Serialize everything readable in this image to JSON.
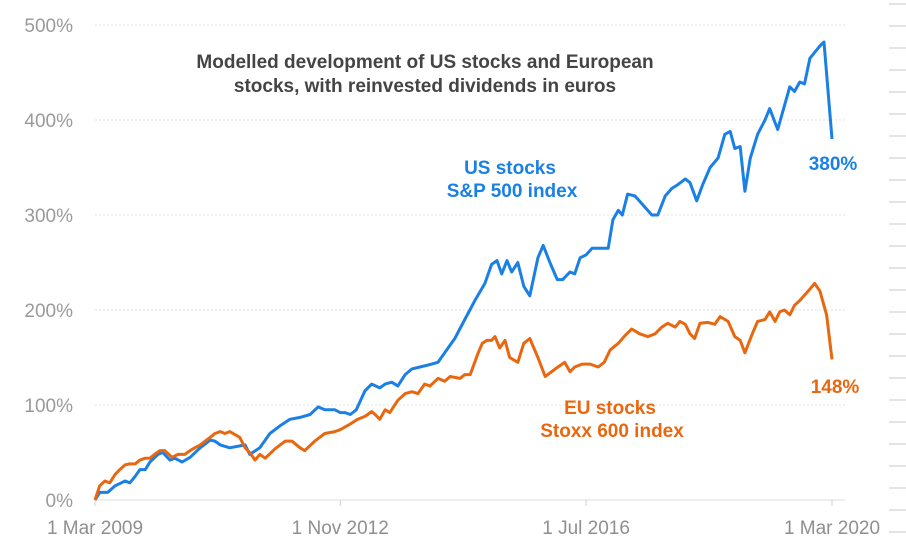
{
  "chart_data": {
    "type": "line",
    "title": "Modelled development of US stocks and European stocks, with reinvested dividends in euros",
    "title_lines": [
      "Modelled development of US stocks and European",
      "stocks, with reinvested dividends in euros"
    ],
    "xlabel": "",
    "ylabel": "",
    "x_unit": "decimal year",
    "xlim": [
      2009.17,
      2020.17
    ],
    "ylim": [
      0,
      500
    ],
    "y_ticks": [
      0,
      100,
      200,
      300,
      400,
      500
    ],
    "y_tick_labels": [
      "0%",
      "100%",
      "200%",
      "300%",
      "400%",
      "500%"
    ],
    "x_ticks": [
      2009.17,
      2012.83,
      2016.5,
      2020.17
    ],
    "x_tick_labels": [
      "1 Mar 2009",
      "1 Nov 2012",
      "1 Jul 2016",
      "1 Mar 2020"
    ],
    "grid": "horizontal dotted",
    "legend": "none (inline labels)",
    "series": [
      {
        "name": "US stocks S&P 500 index",
        "label_lines": [
          "US stocks",
          "S&P 500 index"
        ],
        "end_label": "380%",
        "color": "#1a80e5",
        "points": [
          [
            2009.17,
            0
          ],
          [
            2009.24,
            8
          ],
          [
            2009.36,
            8
          ],
          [
            2009.47,
            15
          ],
          [
            2009.62,
            20
          ],
          [
            2009.69,
            18
          ],
          [
            2009.77,
            25
          ],
          [
            2009.84,
            32
          ],
          [
            2009.92,
            32
          ],
          [
            2009.99,
            40
          ],
          [
            2010.11,
            48
          ],
          [
            2010.18,
            50
          ],
          [
            2010.29,
            42
          ],
          [
            2010.36,
            44
          ],
          [
            2010.47,
            40
          ],
          [
            2010.59,
            45
          ],
          [
            2010.74,
            55
          ],
          [
            2010.89,
            63
          ],
          [
            2010.96,
            62
          ],
          [
            2011.04,
            58
          ],
          [
            2011.18,
            55
          ],
          [
            2011.41,
            58
          ],
          [
            2011.48,
            48
          ],
          [
            2011.63,
            55
          ],
          [
            2011.78,
            70
          ],
          [
            2011.93,
            78
          ],
          [
            2012.08,
            85
          ],
          [
            2012.23,
            87
          ],
          [
            2012.38,
            90
          ],
          [
            2012.5,
            98
          ],
          [
            2012.6,
            95
          ],
          [
            2012.75,
            95
          ],
          [
            2012.83,
            92
          ],
          [
            2012.9,
            92
          ],
          [
            2012.98,
            90
          ],
          [
            2013.07,
            95
          ],
          [
            2013.2,
            115
          ],
          [
            2013.3,
            122
          ],
          [
            2013.42,
            118
          ],
          [
            2013.5,
            122
          ],
          [
            2013.6,
            124
          ],
          [
            2013.69,
            120
          ],
          [
            2013.8,
            132
          ],
          [
            2013.9,
            138
          ],
          [
            2014.02,
            140
          ],
          [
            2014.14,
            142
          ],
          [
            2014.29,
            145
          ],
          [
            2014.39,
            155
          ],
          [
            2014.54,
            170
          ],
          [
            2014.69,
            190
          ],
          [
            2014.84,
            210
          ],
          [
            2014.99,
            228
          ],
          [
            2015.09,
            248
          ],
          [
            2015.17,
            252
          ],
          [
            2015.24,
            238
          ],
          [
            2015.32,
            252
          ],
          [
            2015.39,
            240
          ],
          [
            2015.48,
            250
          ],
          [
            2015.57,
            225
          ],
          [
            2015.66,
            215
          ],
          [
            2015.78,
            255
          ],
          [
            2015.86,
            268
          ],
          [
            2015.96,
            250
          ],
          [
            2016.07,
            232
          ],
          [
            2016.15,
            232
          ],
          [
            2016.26,
            240
          ],
          [
            2016.33,
            238
          ],
          [
            2016.41,
            255
          ],
          [
            2016.5,
            258
          ],
          [
            2016.59,
            265
          ],
          [
            2016.71,
            265
          ],
          [
            2016.83,
            265
          ],
          [
            2016.9,
            295
          ],
          [
            2016.98,
            305
          ],
          [
            2017.04,
            300
          ],
          [
            2017.12,
            322
          ],
          [
            2017.23,
            320
          ],
          [
            2017.38,
            308
          ],
          [
            2017.48,
            300
          ],
          [
            2017.57,
            300
          ],
          [
            2017.68,
            320
          ],
          [
            2017.78,
            328
          ],
          [
            2017.87,
            332
          ],
          [
            2017.98,
            338
          ],
          [
            2018.05,
            334
          ],
          [
            2018.15,
            315
          ],
          [
            2018.24,
            332
          ],
          [
            2018.35,
            350
          ],
          [
            2018.47,
            360
          ],
          [
            2018.57,
            385
          ],
          [
            2018.65,
            388
          ],
          [
            2018.72,
            370
          ],
          [
            2018.8,
            372
          ],
          [
            2018.87,
            325
          ],
          [
            2018.95,
            360
          ],
          [
            2019.06,
            385
          ],
          [
            2019.17,
            400
          ],
          [
            2019.24,
            412
          ],
          [
            2019.36,
            390
          ],
          [
            2019.46,
            415
          ],
          [
            2019.54,
            435
          ],
          [
            2019.61,
            430
          ],
          [
            2019.69,
            440
          ],
          [
            2019.76,
            438
          ],
          [
            2019.84,
            465
          ],
          [
            2019.99,
            478
          ],
          [
            2020.05,
            482
          ],
          [
            2020.17,
            380
          ]
        ]
      },
      {
        "name": "EU stocks Stoxx 600 index",
        "label_lines": [
          "EU stocks",
          "Stoxx 600 index"
        ],
        "end_label": "148%",
        "color": "#e8670f",
        "points": [
          [
            2009.17,
            0
          ],
          [
            2009.24,
            15
          ],
          [
            2009.32,
            20
          ],
          [
            2009.39,
            18
          ],
          [
            2009.47,
            27
          ],
          [
            2009.54,
            32
          ],
          [
            2009.62,
            37
          ],
          [
            2009.69,
            38
          ],
          [
            2009.77,
            38
          ],
          [
            2009.84,
            42
          ],
          [
            2009.92,
            44
          ],
          [
            2009.99,
            44
          ],
          [
            2010.06,
            48
          ],
          [
            2010.14,
            52
          ],
          [
            2010.21,
            52
          ],
          [
            2010.32,
            45
          ],
          [
            2010.41,
            48
          ],
          [
            2010.51,
            48
          ],
          [
            2010.59,
            52
          ],
          [
            2010.66,
            55
          ],
          [
            2010.74,
            58
          ],
          [
            2010.89,
            66
          ],
          [
            2010.96,
            70
          ],
          [
            2011.04,
            72
          ],
          [
            2011.11,
            70
          ],
          [
            2011.18,
            72
          ],
          [
            2011.33,
            66
          ],
          [
            2011.41,
            55
          ],
          [
            2011.48,
            50
          ],
          [
            2011.56,
            42
          ],
          [
            2011.63,
            48
          ],
          [
            2011.71,
            44
          ],
          [
            2011.86,
            54
          ],
          [
            2012.01,
            62
          ],
          [
            2012.11,
            62
          ],
          [
            2012.23,
            55
          ],
          [
            2012.3,
            52
          ],
          [
            2012.45,
            62
          ],
          [
            2012.6,
            70
          ],
          [
            2012.75,
            72
          ],
          [
            2012.83,
            74
          ],
          [
            2012.98,
            80
          ],
          [
            2013.09,
            85
          ],
          [
            2013.2,
            88
          ],
          [
            2013.3,
            93
          ],
          [
            2013.35,
            90
          ],
          [
            2013.42,
            85
          ],
          [
            2013.5,
            95
          ],
          [
            2013.57,
            92
          ],
          [
            2013.69,
            105
          ],
          [
            2013.8,
            112
          ],
          [
            2013.9,
            114
          ],
          [
            2013.99,
            112
          ],
          [
            2014.09,
            122
          ],
          [
            2014.17,
            120
          ],
          [
            2014.29,
            128
          ],
          [
            2014.39,
            125
          ],
          [
            2014.47,
            130
          ],
          [
            2014.62,
            128
          ],
          [
            2014.69,
            132
          ],
          [
            2014.77,
            132
          ],
          [
            2014.89,
            155
          ],
          [
            2014.95,
            165
          ],
          [
            2015.02,
            168
          ],
          [
            2015.09,
            168
          ],
          [
            2015.14,
            172
          ],
          [
            2015.21,
            160
          ],
          [
            2015.29,
            168
          ],
          [
            2015.36,
            150
          ],
          [
            2015.48,
            145
          ],
          [
            2015.57,
            165
          ],
          [
            2015.66,
            170
          ],
          [
            2015.78,
            150
          ],
          [
            2015.89,
            130
          ],
          [
            2016.04,
            138
          ],
          [
            2016.18,
            145
          ],
          [
            2016.26,
            135
          ],
          [
            2016.33,
            140
          ],
          [
            2016.44,
            143
          ],
          [
            2016.56,
            143
          ],
          [
            2016.68,
            140
          ],
          [
            2016.77,
            145
          ],
          [
            2016.86,
            158
          ],
          [
            2016.98,
            165
          ],
          [
            2017.08,
            173
          ],
          [
            2017.18,
            180
          ],
          [
            2017.3,
            175
          ],
          [
            2017.42,
            172
          ],
          [
            2017.53,
            175
          ],
          [
            2017.63,
            182
          ],
          [
            2017.72,
            186
          ],
          [
            2017.83,
            182
          ],
          [
            2017.9,
            188
          ],
          [
            2017.98,
            185
          ],
          [
            2018.05,
            175
          ],
          [
            2018.12,
            170
          ],
          [
            2018.2,
            186
          ],
          [
            2018.32,
            187
          ],
          [
            2018.42,
            185
          ],
          [
            2018.5,
            193
          ],
          [
            2018.62,
            188
          ],
          [
            2018.72,
            172
          ],
          [
            2018.8,
            168
          ],
          [
            2018.87,
            155
          ],
          [
            2018.98,
            175
          ],
          [
            2019.06,
            188
          ],
          [
            2019.17,
            190
          ],
          [
            2019.24,
            198
          ],
          [
            2019.32,
            188
          ],
          [
            2019.39,
            198
          ],
          [
            2019.46,
            200
          ],
          [
            2019.54,
            195
          ],
          [
            2019.61,
            205
          ],
          [
            2019.69,
            210
          ],
          [
            2019.84,
            222
          ],
          [
            2019.91,
            228
          ],
          [
            2019.99,
            220
          ],
          [
            2020.09,
            195
          ],
          [
            2020.17,
            148
          ]
        ]
      }
    ]
  }
}
